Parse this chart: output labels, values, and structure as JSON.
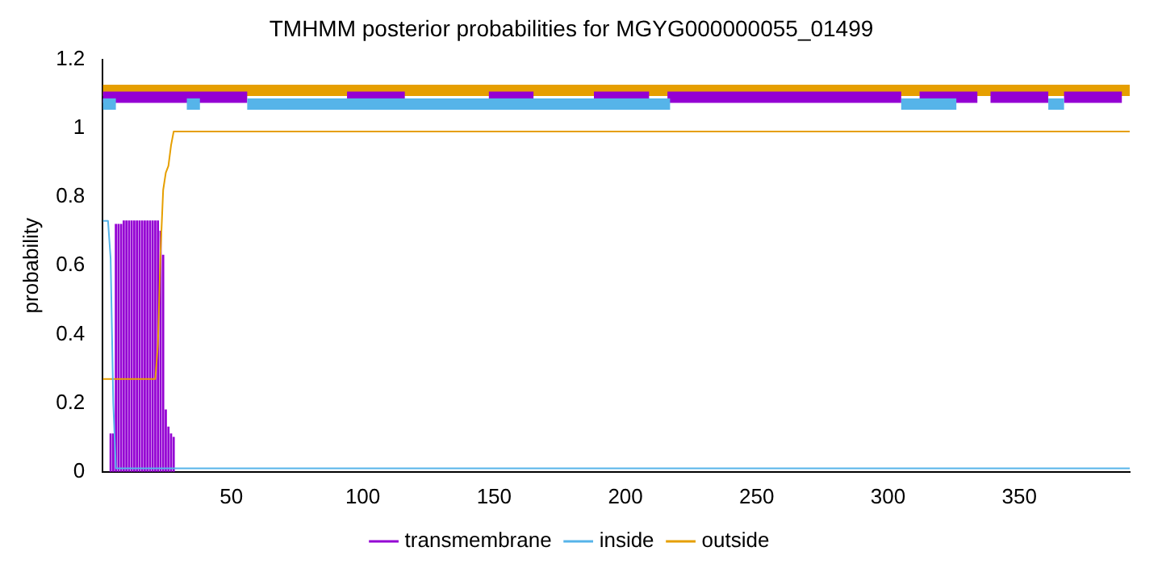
{
  "chart_data": {
    "type": "line",
    "title": "TMHMM posterior probabilities for MGYG000000055_01499",
    "ylabel": "probability",
    "xlim": [
      1,
      392
    ],
    "xticks": [
      50,
      100,
      150,
      200,
      250,
      300,
      350
    ],
    "ylim": [
      0,
      1.2
    ],
    "yticks": [
      0,
      0.2,
      0.4,
      0.6,
      0.8,
      1,
      1.2
    ],
    "grid": false,
    "legend": "bottom",
    "marker": "none",
    "line_style": "solid",
    "series": [
      {
        "name": "transmembrane",
        "type": "bar",
        "color": "#9400d3",
        "x": [
          4,
          5,
          6,
          7,
          8,
          9,
          10,
          11,
          12,
          13,
          14,
          15,
          16,
          17,
          18,
          19,
          20,
          21,
          22,
          23,
          24,
          25,
          26,
          27,
          28
        ],
        "values": [
          0.11,
          0.11,
          0.72,
          0.72,
          0.72,
          0.73,
          0.73,
          0.73,
          0.73,
          0.73,
          0.73,
          0.73,
          0.73,
          0.73,
          0.73,
          0.73,
          0.73,
          0.73,
          0.73,
          0.7,
          0.63,
          0.18,
          0.13,
          0.11,
          0.1
        ]
      },
      {
        "name": "inside",
        "color": "#56b4e9",
        "x": [
          1,
          3,
          4,
          5,
          6,
          392
        ],
        "values": [
          0.73,
          0.73,
          0.62,
          0.2,
          0.01,
          0.01
        ]
      },
      {
        "name": "outside",
        "color": "#e69f00",
        "x": [
          1,
          21,
          22,
          23,
          24,
          25,
          26,
          27,
          28,
          392
        ],
        "values": [
          0.27,
          0.27,
          0.37,
          0.64,
          0.82,
          0.87,
          0.89,
          0.95,
          0.99,
          0.99
        ]
      },
      {
        "color": "#56b4e9",
        "x": [
          1,
          6
        ],
        "values": [
          1.07,
          1.07
        ]
      },
      {
        "color": "#56b4e9",
        "x": [
          33,
          38
        ],
        "values": [
          1.07,
          1.07
        ]
      },
      {
        "color": "#56b4e9",
        "x": [
          56,
          217
        ],
        "values": [
          1.07,
          1.07
        ]
      },
      {
        "color": "#56b4e9",
        "x": [
          305,
          326
        ],
        "values": [
          1.07,
          1.07
        ]
      },
      {
        "color": "#56b4e9",
        "x": [
          361,
          367
        ],
        "values": [
          1.07,
          1.07
        ]
      },
      {
        "color": "#9400d3",
        "x": [
          1,
          56
        ],
        "values": [
          1.09,
          1.09
        ]
      },
      {
        "color": "#9400d3",
        "x": [
          94,
          116
        ],
        "values": [
          1.09,
          1.09
        ]
      },
      {
        "color": "#9400d3",
        "x": [
          148,
          165
        ],
        "values": [
          1.09,
          1.09
        ]
      },
      {
        "color": "#9400d3",
        "x": [
          188,
          209
        ],
        "values": [
          1.09,
          1.09
        ]
      },
      {
        "color": "#9400d3",
        "x": [
          216,
          305
        ],
        "values": [
          1.09,
          1.09
        ]
      },
      {
        "color": "#9400d3",
        "x": [
          312,
          334
        ],
        "values": [
          1.09,
          1.09
        ]
      },
      {
        "color": "#9400d3",
        "x": [
          339,
          361
        ],
        "values": [
          1.09,
          1.09
        ]
      },
      {
        "color": "#9400d3",
        "x": [
          367,
          389
        ],
        "values": [
          1.09,
          1.09
        ]
      },
      {
        "color": "#e69f00",
        "x": [
          1,
          392
        ],
        "values": [
          1.11,
          1.11
        ]
      }
    ]
  }
}
